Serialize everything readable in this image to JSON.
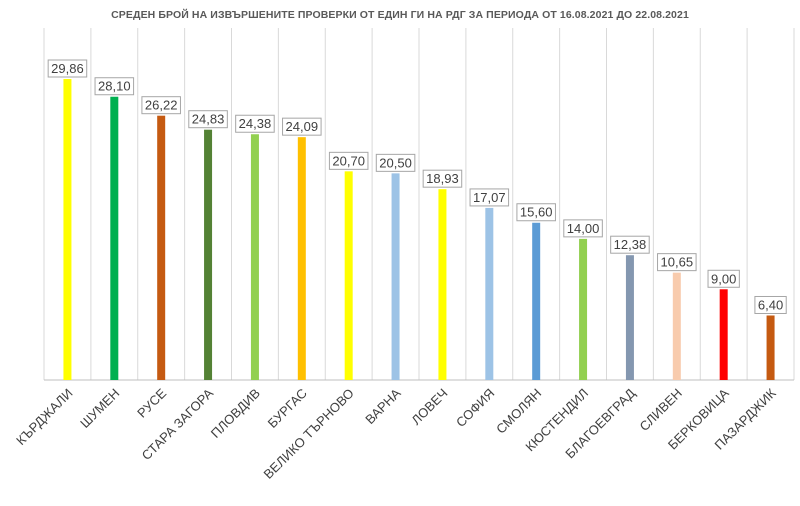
{
  "chart_data": {
    "type": "bar",
    "title": "СРЕДЕН БРОЙ НА ИЗВЪРШЕНИТЕ ПРОВЕРКИ ОТ ЕДИН ГИ НА РДГ ЗА ПЕРИОДА ОТ 16.08.2021 ДО 22.08.2021",
    "categories": [
      "КЪРДЖАЛИ",
      "ШУМЕН",
      "РУСЕ",
      "СТАРА ЗАГОРА",
      "ПЛОВДИВ",
      "БУРГАС",
      "ВЕЛИКО ТЪРНОВО",
      "ВАРНА",
      "ЛОВЕЧ",
      "СОФИЯ",
      "СМОЛЯН",
      "КЮСТЕНДИЛ",
      "БЛАГОЕВГРАД",
      "СЛИВЕН",
      "БЕРКОВИЦА",
      "ПАЗАРДЖИК"
    ],
    "values": [
      29.86,
      28.1,
      26.22,
      24.83,
      24.38,
      24.09,
      20.7,
      20.5,
      18.93,
      17.07,
      15.6,
      14.0,
      12.38,
      10.65,
      9.0,
      6.4
    ],
    "value_labels": [
      "29,86",
      "28,10",
      "26,22",
      "24,83",
      "24,38",
      "24,09",
      "20,70",
      "20,50",
      "18,93",
      "17,07",
      "15,60",
      "14,00",
      "12,38",
      "10,65",
      "9,00",
      "6,40"
    ],
    "colors": [
      "#ffff00",
      "#00b050",
      "#c55a11",
      "#548235",
      "#92d050",
      "#ffc000",
      "#ffff00",
      "#9dc3e6",
      "#ffff00",
      "#9dc3e6",
      "#5b9bd5",
      "#92d050",
      "#8497b0",
      "#f8cbad",
      "#ff0000",
      "#c55a11"
    ],
    "ylim": [
      0,
      30
    ],
    "grid": "vertical",
    "legend": "none"
  }
}
